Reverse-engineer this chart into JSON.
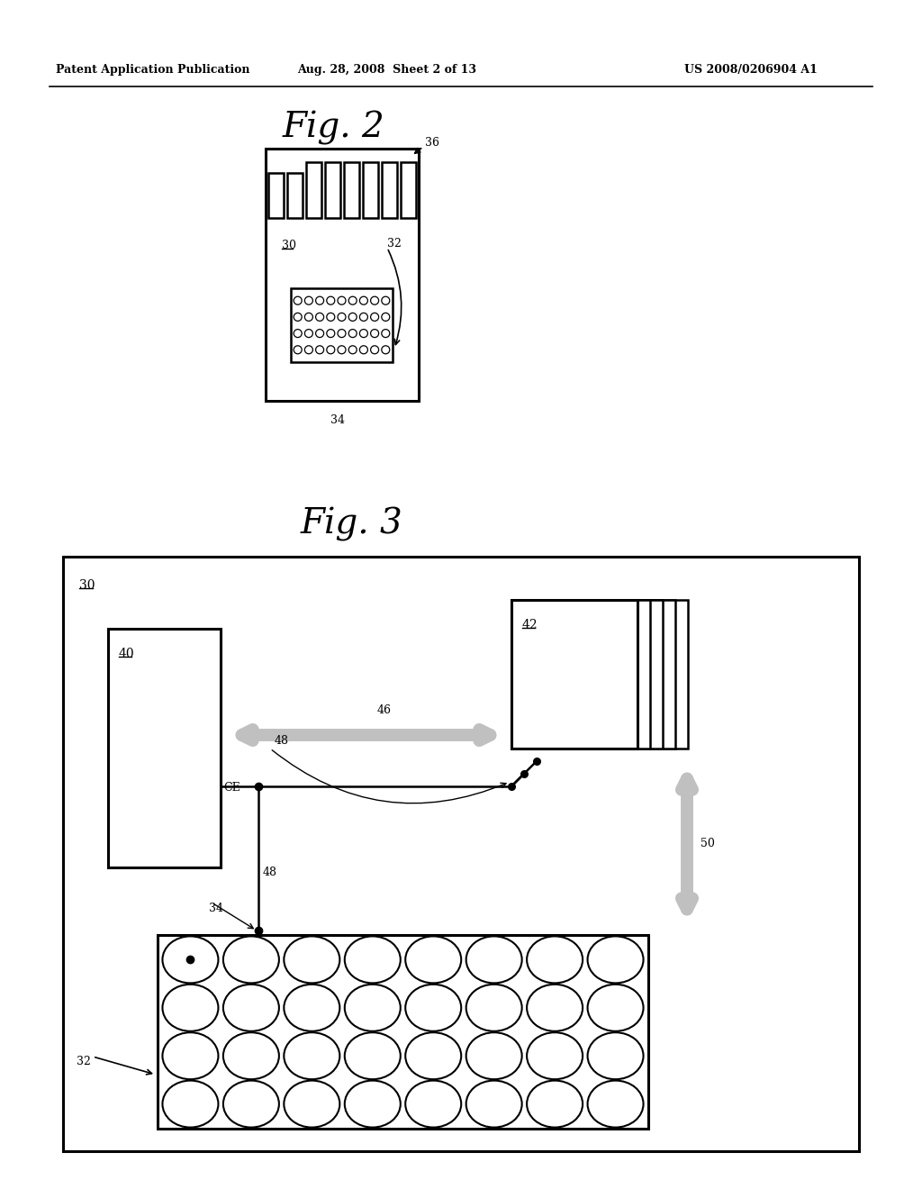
{
  "bg_color": "#ffffff",
  "header_left": "Patent Application Publication",
  "header_center": "Aug. 28, 2008  Sheet 2 of 13",
  "header_right": "US 2008/0206904 A1",
  "fig2_title": "Fig. 2",
  "fig3_title": "Fig. 3",
  "label_30_fig2": "30",
  "label_32_fig2": "32",
  "label_34_fig2": "34",
  "label_36_fig2": "36",
  "label_30_fig3": "30",
  "label_40": "40",
  "label_42": "42",
  "label_46": "46",
  "label_48a": "48",
  "label_48b": "48",
  "label_50": "50",
  "label_CE": "CE",
  "label_32_fig3": "32",
  "label_34_fig3": "34",
  "arrow_gray": "#c0c0c0",
  "line_color": "#000000"
}
